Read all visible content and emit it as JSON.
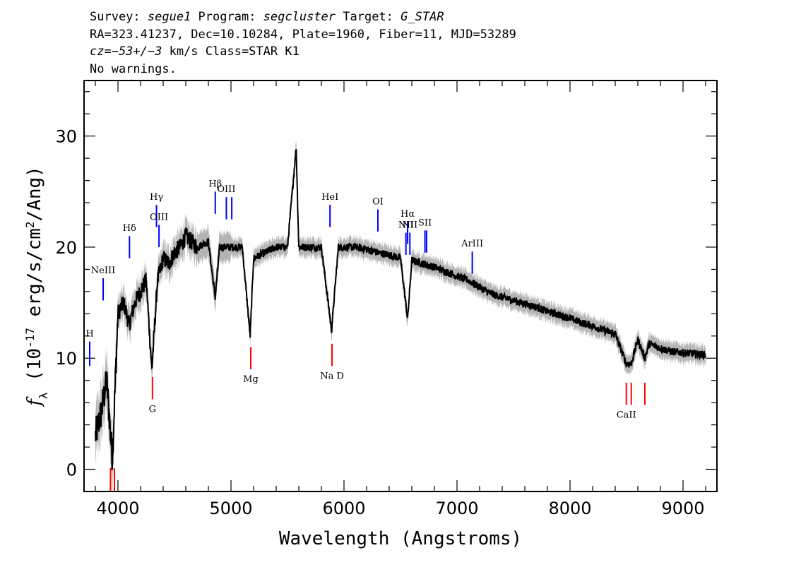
{
  "header": {
    "line1": {
      "survey_label": "Survey: ",
      "survey": "segue1",
      "program_label": " Program: ",
      "program": "segcluster",
      "target_label": " Target: ",
      "target": "G_STAR"
    },
    "line2": "RA=323.41237, Dec=10.10284, Plate=1960, Fiber=11, MJD=53289",
    "line3": {
      "cz": "cz=−53+/−3",
      "rest": " km/s Class=STAR K1"
    },
    "line4": "No warnings."
  },
  "chart_data": {
    "type": "line",
    "title": "",
    "xlabel": "Wavelength (Angstroms)",
    "ylabel": "f_λ (10^-17 erg/s/cm^2/Ang)",
    "xlim": [
      3700,
      9300
    ],
    "ylim": [
      -2,
      35
    ],
    "x_ticks": [
      4000,
      5000,
      6000,
      7000,
      8000,
      9000
    ],
    "y_ticks": [
      0,
      10,
      20,
      30
    ],
    "colors": {
      "spectrum": "#000000",
      "error_band": "#b4b4b4",
      "emission_line": "#0000ff",
      "absorption_line": "#ff0000"
    },
    "series": [
      {
        "x": [
          3800,
          3850,
          3900,
          3950,
          4000,
          4050,
          4100,
          4150,
          4200,
          4250,
          4300,
          4350,
          4400,
          4450,
          4500,
          4550,
          4600,
          4700,
          4800,
          4860,
          4900,
          5000,
          5100,
          5170,
          5200,
          5300,
          5400,
          5500,
          5577,
          5600,
          5700,
          5800,
          5890,
          5950,
          6000,
          6100,
          6200,
          6300,
          6400,
          6500,
          6563,
          6600,
          6700,
          6800,
          6900,
          7000,
          7100,
          7200,
          7300,
          7400,
          7500,
          7600,
          7700,
          7800,
          7900,
          8000,
          8100,
          8200,
          8300,
          8400,
          8498,
          8542,
          8600,
          8662,
          8700,
          8800,
          8900,
          9000,
          9100,
          9200
        ],
        "values": [
          3,
          5,
          8,
          1,
          14,
          15,
          13,
          15,
          16,
          17,
          9,
          17,
          19,
          18.5,
          19.5,
          20,
          21,
          20,
          20.5,
          15.5,
          20,
          20,
          20,
          12,
          19,
          19.5,
          20,
          20,
          29,
          20,
          20,
          20,
          12.5,
          20,
          20,
          20,
          19.8,
          19.5,
          19.3,
          19,
          13.5,
          18.8,
          18.5,
          18.2,
          17.8,
          17.4,
          17.0,
          16.4,
          15.8,
          15.5,
          15.2,
          14.9,
          14.6,
          14.2,
          13.9,
          13.6,
          13.2,
          12.9,
          12.5,
          12.2,
          9.5,
          9.5,
          11.7,
          10,
          11.3,
          10.9,
          10.6,
          10.5,
          10.4,
          10.3
        ]
      }
    ],
    "emission_lines": [
      {
        "label": "H",
        "wavelength": 3750,
        "y_low": 9.3,
        "y_high": 11.5
      },
      {
        "label": "NeIII",
        "wavelength": 3869,
        "y_low": 15.2,
        "y_high": 17.2
      },
      {
        "label": "Hδ",
        "wavelength": 4102,
        "y_low": 19.0,
        "y_high": 21.0
      },
      {
        "label": "Hγ",
        "wavelength": 4341,
        "y_low": 21.8,
        "y_high": 23.8
      },
      {
        "label": "OIII",
        "wavelength": 4363,
        "y_low": 20.0,
        "y_high": 22.0
      },
      {
        "label": "Hβ",
        "wavelength": 4861,
        "y_low": 23.0,
        "y_high": 25.0
      },
      {
        "label": "OIII",
        "wavelength": 4959,
        "y_low": 22.5,
        "y_high": 24.5
      },
      {
        "label": "",
        "wavelength": 5007,
        "y_low": 22.5,
        "y_high": 24.5
      },
      {
        "label": "HeI",
        "wavelength": 5876,
        "y_low": 21.8,
        "y_high": 23.8
      },
      {
        "label": "OI",
        "wavelength": 6300,
        "y_low": 21.4,
        "y_high": 23.4
      },
      {
        "label": "NII",
        "wavelength": 6548,
        "y_low": 19.3,
        "y_high": 21.3
      },
      {
        "label": "Hα",
        "wavelength": 6563,
        "y_low": 20.3,
        "y_high": 22.3
      },
      {
        "label": "NII",
        "wavelength": 6583,
        "y_low": 19.3,
        "y_high": 21.3
      },
      {
        "label": "SII",
        "wavelength": 6716,
        "y_low": 19.5,
        "y_high": 21.5
      },
      {
        "label": "",
        "wavelength": 6731,
        "y_low": 19.5,
        "y_high": 21.5
      },
      {
        "label": "ArIII",
        "wavelength": 7135,
        "y_low": 17.6,
        "y_high": 19.6
      }
    ],
    "absorption_lines": [
      {
        "label": "",
        "wavelength": 3934,
        "y_low": -2,
        "y_high": 0.1
      },
      {
        "label": "",
        "wavelength": 3969,
        "y_low": -2,
        "y_high": 0.1
      },
      {
        "label": "G",
        "wavelength": 4305,
        "y_low": 6.3,
        "y_high": 8.3
      },
      {
        "label": "Mg",
        "wavelength": 5175,
        "y_low": 9.0,
        "y_high": 11.0
      },
      {
        "label": "Na D",
        "wavelength": 5894,
        "y_low": 9.3,
        "y_high": 11.3
      },
      {
        "label": "CaII",
        "wavelength": 8498,
        "y_low": 5.8,
        "y_high": 7.8
      },
      {
        "label": "",
        "wavelength": 8542,
        "y_low": 5.8,
        "y_high": 7.8
      },
      {
        "label": "",
        "wavelength": 8662,
        "y_low": 5.8,
        "y_high": 7.8
      }
    ]
  }
}
